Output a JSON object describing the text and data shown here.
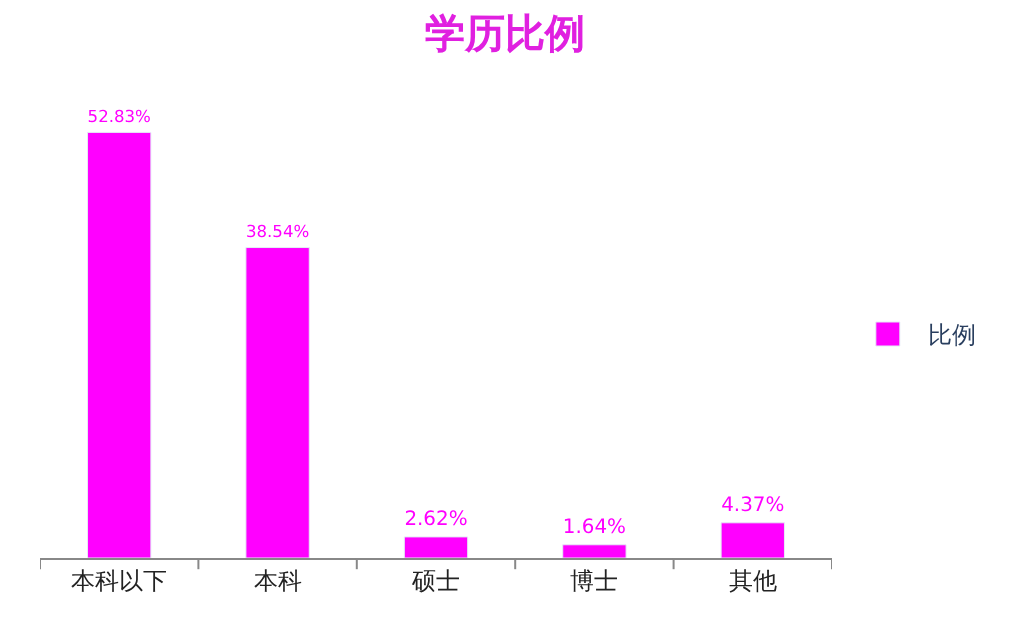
{
  "chart_data": {
    "type": "bar",
    "title": "学历比例",
    "categories": [
      "本科以下",
      "本科",
      "硕士",
      "博士",
      "其他"
    ],
    "series": [
      {
        "name": "比例",
        "color": "#ff00ff",
        "values": [
          52.83,
          38.54,
          2.62,
          1.64,
          4.37
        ],
        "value_labels": [
          "52.83%",
          "38.54%",
          "2.62%",
          "1.64%",
          "4.37%"
        ]
      }
    ],
    "legend": "right",
    "tick_labels": "x"
  }
}
